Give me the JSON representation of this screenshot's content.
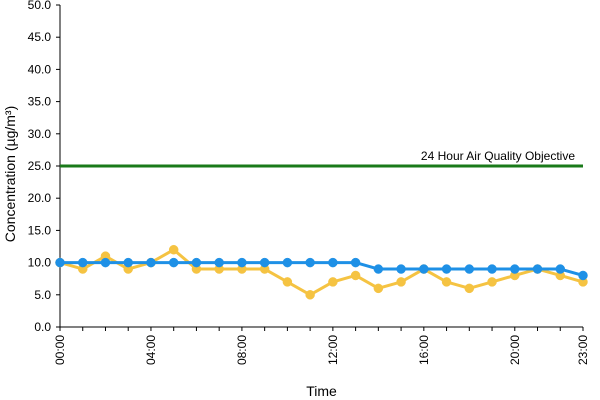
{
  "chart_data": {
    "type": "line",
    "xlabel": "Time",
    "ylabel": "Concentration (µg/m³)",
    "ylim": [
      0,
      50
    ],
    "yticks": [
      "0.0",
      "5.0",
      "10.0",
      "15.0",
      "20.0",
      "25.0",
      "30.0",
      "35.0",
      "40.0",
      "45.0",
      "50.0"
    ],
    "x": [
      "00:00",
      "01:00",
      "02:00",
      "03:00",
      "04:00",
      "05:00",
      "06:00",
      "07:00",
      "08:00",
      "09:00",
      "10:00",
      "11:00",
      "12:00",
      "13:00",
      "14:00",
      "15:00",
      "16:00",
      "17:00",
      "18:00",
      "19:00",
      "20:00",
      "21:00",
      "22:00",
      "23:00"
    ],
    "xtick_labels": [
      "00:00",
      "04:00",
      "08:00",
      "12:00",
      "16:00",
      "20:00",
      "23:00"
    ],
    "grid": false,
    "series": [
      {
        "color": "#f5c342",
        "values": [
          10,
          9,
          11,
          9,
          10,
          12,
          9,
          9,
          9,
          9,
          7,
          5,
          7,
          8,
          6,
          7,
          9,
          7,
          6,
          7,
          8,
          9,
          8,
          7
        ]
      },
      {
        "color": "#1e90e6",
        "values": [
          10,
          10,
          10,
          10,
          10,
          10,
          10,
          10,
          10,
          10,
          10,
          10,
          10,
          10,
          9,
          9,
          9,
          9,
          9,
          9,
          9,
          9,
          9,
          8
        ]
      }
    ],
    "reference_line": {
      "label": "24 Hour Air Quality Objective",
      "value": 25,
      "color": "#1a7a1a"
    }
  }
}
